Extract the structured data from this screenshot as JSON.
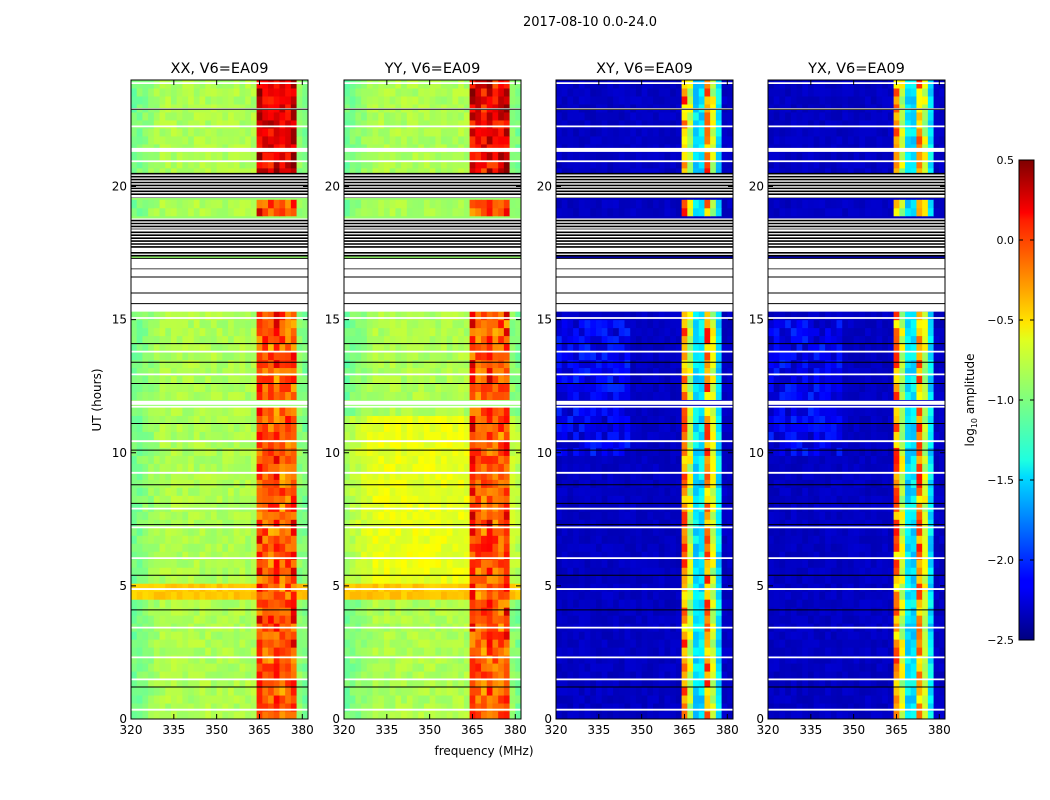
{
  "chart_data": {
    "type": "heatmap",
    "title": "2017-08-10 0.0-24.0",
    "xlabel": "frequency (MHz)",
    "ylabel": "UT (hours)",
    "xlim": [
      320,
      382
    ],
    "ylim": [
      0,
      24
    ],
    "xticks": [
      320,
      335,
      350,
      365,
      380
    ],
    "yticks": [
      0,
      5,
      10,
      15,
      20
    ],
    "panels": [
      {
        "name": "XX",
        "title": "XX, V6=EA09",
        "style": "auto"
      },
      {
        "name": "YY",
        "title": "YY, V6=EA09",
        "style": "auto"
      },
      {
        "name": "XY",
        "title": "XY, V6=EA09",
        "style": "cross"
      },
      {
        "name": "YX",
        "title": "YX, V6=EA09",
        "style": "cross"
      }
    ],
    "colorbar": {
      "label_main": "log",
      "label_sub": "10",
      "label_rest": " amplitude",
      "range": [
        -2.5,
        0.5
      ],
      "ticks": [
        "0.5",
        "0.0",
        "−0.5",
        "−1.0",
        "−1.5",
        "−2.0",
        "−2.5"
      ],
      "colormap": "jet"
    },
    "signal_band_mhz": [
      363,
      378
    ],
    "flagged_black_hours": [
      [
        17.4,
        18.8
      ],
      [
        19.6,
        20.5
      ]
    ],
    "flagged_white_hours": [
      [
        15.3,
        17.3
      ],
      [
        11.8,
        11.95
      ],
      [
        21.3,
        21.45
      ]
    ]
  }
}
